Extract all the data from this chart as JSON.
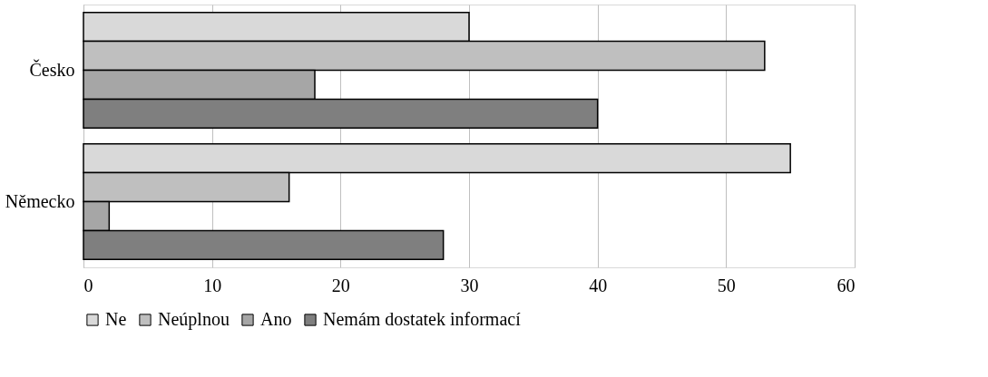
{
  "chart_data": {
    "type": "bar",
    "orientation": "horizontal",
    "categories": [
      "Česko",
      "Německo"
    ],
    "series": [
      {
        "name": "Ne",
        "color": "#d9d9d9",
        "values": [
          30,
          55
        ]
      },
      {
        "name": "Neúplnou",
        "color": "#bfbfbf",
        "values": [
          53,
          16
        ]
      },
      {
        "name": "Ano",
        "color": "#a6a6a6",
        "values": [
          18,
          2
        ]
      },
      {
        "name": "Nemám dostatek informací",
        "color": "#7f7f7f",
        "values": [
          40,
          28
        ]
      }
    ],
    "xlim": [
      0,
      60
    ],
    "xticks": [
      0,
      10,
      20,
      30,
      40,
      50,
      60
    ],
    "grid": "x",
    "legend": "bottom"
  }
}
